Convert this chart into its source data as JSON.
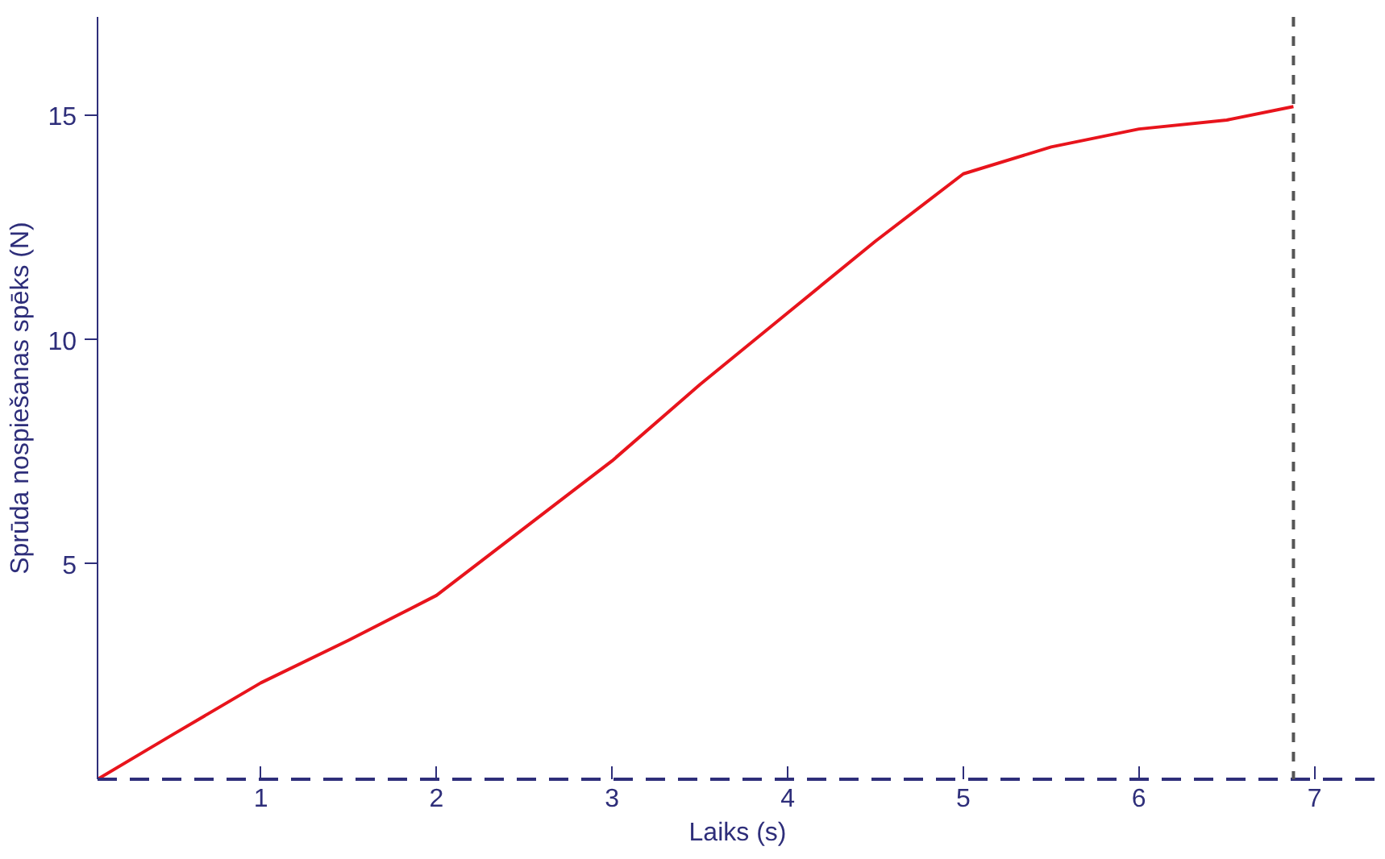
{
  "chart_data": {
    "type": "line",
    "xlabel": "Laiks (s)",
    "ylabel": "Sprūda nospiešanas spēks (N)",
    "xlim": [
      0.07,
      7.36
    ],
    "ylim": [
      0.2,
      17.2
    ],
    "xticks": [
      1,
      2,
      3,
      4,
      5,
      6,
      7
    ],
    "yticks": [
      5,
      10,
      15
    ],
    "grid": false,
    "series": [
      {
        "color": "#e8141c",
        "x": [
          0.07,
          0.5,
          1,
          1.5,
          2,
          2.5,
          3,
          3.5,
          4,
          4.5,
          5,
          5.5,
          6,
          6.5,
          6.88
        ],
        "values": [
          0.2,
          1.2,
          2.35,
          3.3,
          4.3,
          5.8,
          7.3,
          9.0,
          10.6,
          12.2,
          13.7,
          14.3,
          14.7,
          14.9,
          15.2
        ]
      }
    ],
    "ref_lines": [
      {
        "axis": "x",
        "value": 6.88,
        "color": "#555555",
        "line_style": "dashed"
      }
    ]
  }
}
